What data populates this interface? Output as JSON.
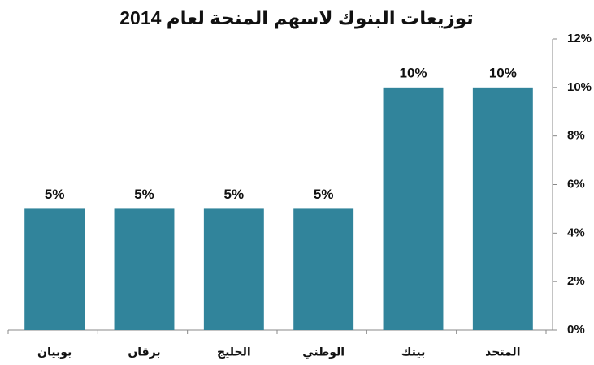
{
  "chart_data": {
    "type": "bar",
    "title": "توزيعات البنوك لاسهم المنحة لعام 2014",
    "categories": [
      "المتحد",
      "بيتك",
      "الوطني",
      "الخليج",
      "برقان",
      "بوبيان"
    ],
    "values": [
      10,
      10,
      5,
      5,
      5,
      5
    ],
    "value_labels": [
      "10%",
      "10%",
      "5%",
      "5%",
      "5%",
      "5%"
    ],
    "color": "#31849b",
    "ylim": [
      0,
      12
    ],
    "yticks": [
      {
        "value": 0,
        "label": "0%"
      },
      {
        "value": 2,
        "label": "2%"
      },
      {
        "value": 4,
        "label": "4%"
      },
      {
        "value": 6,
        "label": "6%"
      },
      {
        "value": 8,
        "label": "8%"
      },
      {
        "value": 10,
        "label": "10%"
      },
      {
        "value": 12,
        "label": "12%"
      }
    ],
    "y_axis_side": "right",
    "category_direction": "right-to-left"
  }
}
